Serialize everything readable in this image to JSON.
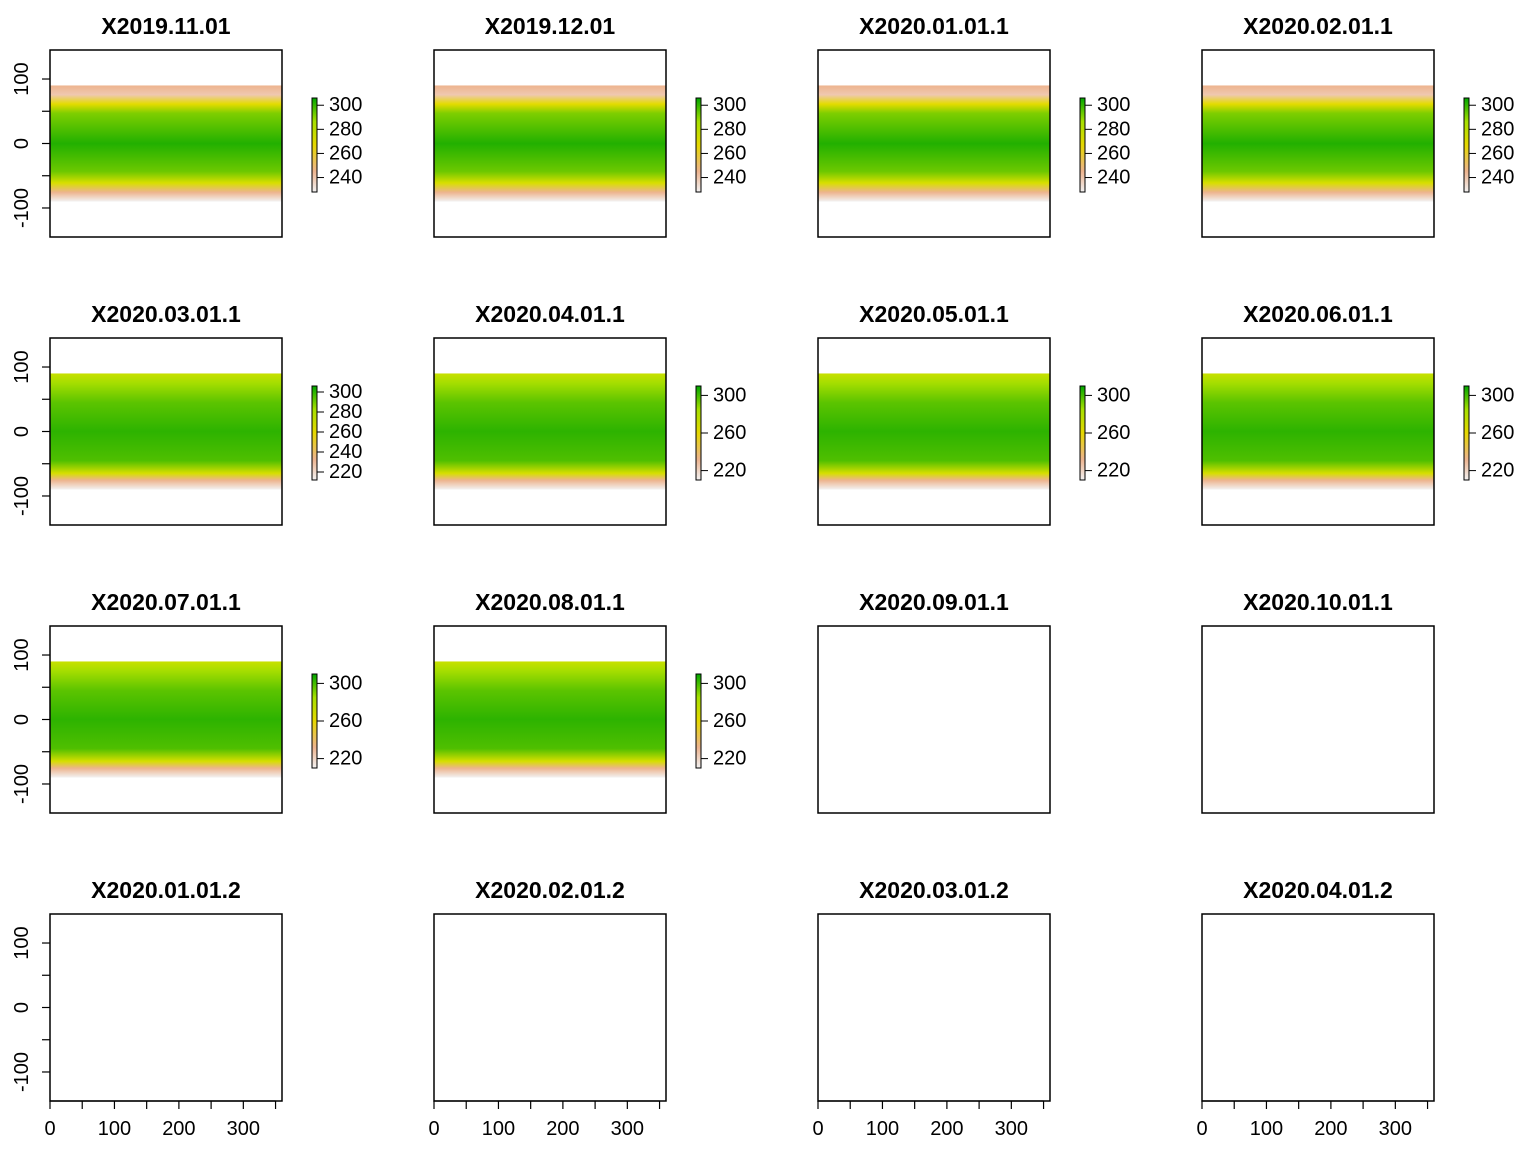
{
  "colors": {
    "ramp": [
      "#f2f2f2",
      "#edb48e",
      "#e6d800",
      "#a6e000",
      "#00a600"
    ],
    "axis": "#000000",
    "background": "#ffffff"
  },
  "chart_data": {
    "type": "heatmap",
    "layout": {
      "rows": 4,
      "cols": 4
    },
    "xlim": [
      0,
      360
    ],
    "ylim": [
      -145,
      145
    ],
    "raster_extent": {
      "x": [
        0,
        360
      ],
      "y": [
        -90,
        90
      ]
    },
    "x_ticks": [
      "0",
      "100",
      "200",
      "300"
    ],
    "y_ticks": [
      "-100",
      "0",
      "100"
    ],
    "panels": [
      {
        "title": "X2019.11.01",
        "has_data": true,
        "zlim": [
          228,
          306
        ],
        "legend_ticks": [
          "240",
          "260",
          "280",
          "300"
        ]
      },
      {
        "title": "X2019.12.01",
        "has_data": true,
        "zlim": [
          228,
          306
        ],
        "legend_ticks": [
          "240",
          "260",
          "280",
          "300"
        ]
      },
      {
        "title": "X2020.01.01.1",
        "has_data": true,
        "zlim": [
          228,
          306
        ],
        "legend_ticks": [
          "240",
          "260",
          "280",
          "300"
        ]
      },
      {
        "title": "X2020.02.01.1",
        "has_data": true,
        "zlim": [
          228,
          306
        ],
        "legend_ticks": [
          "240",
          "260",
          "280",
          "300"
        ]
      },
      {
        "title": "X2020.03.01.1",
        "has_data": true,
        "zlim": [
          212,
          306
        ],
        "legend_ticks": [
          "220",
          "240",
          "260",
          "280",
          "300"
        ]
      },
      {
        "title": "X2020.04.01.1",
        "has_data": true,
        "zlim": [
          210,
          310
        ],
        "legend_ticks": [
          "220",
          "260",
          "300"
        ]
      },
      {
        "title": "X2020.05.01.1",
        "has_data": true,
        "zlim": [
          210,
          310
        ],
        "legend_ticks": [
          "220",
          "260",
          "300"
        ]
      },
      {
        "title": "X2020.06.01.1",
        "has_data": true,
        "zlim": [
          210,
          310
        ],
        "legend_ticks": [
          "220",
          "260",
          "300"
        ]
      },
      {
        "title": "X2020.07.01.1",
        "has_data": true,
        "zlim": [
          210,
          310
        ],
        "legend_ticks": [
          "220",
          "260",
          "300"
        ]
      },
      {
        "title": "X2020.08.01.1",
        "has_data": true,
        "zlim": [
          210,
          310
        ],
        "legend_ticks": [
          "220",
          "260",
          "300"
        ]
      },
      {
        "title": "X2020.09.01.1",
        "has_data": false
      },
      {
        "title": "X2020.10.01.1",
        "has_data": false
      },
      {
        "title": "X2020.01.01.2",
        "has_data": false
      },
      {
        "title": "X2020.02.01.2",
        "has_data": false
      },
      {
        "title": "X2020.03.01.2",
        "has_data": false
      },
      {
        "title": "X2020.04.01.2",
        "has_data": false
      }
    ]
  }
}
